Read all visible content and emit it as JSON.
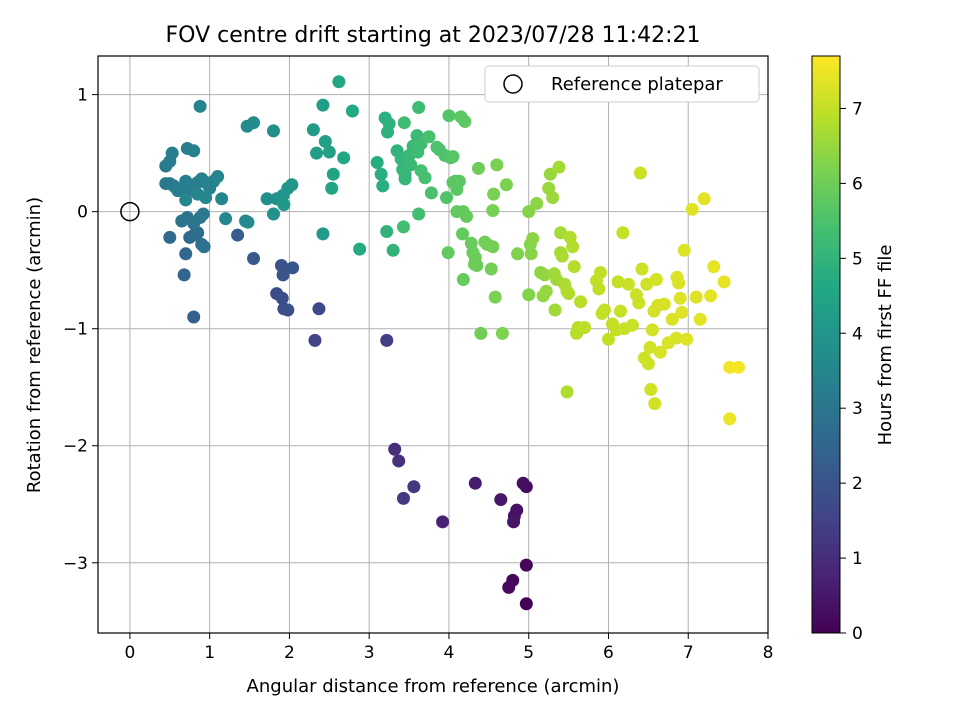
{
  "chart_data": {
    "type": "scatter",
    "title": "FOV centre drift starting at 2023/07/28 11:42:21",
    "xlabel": "Angular distance from reference (arcmin)",
    "ylabel": "Rotation from reference (arcmin)",
    "xlim": [
      -0.4,
      8.0
    ],
    "ylim": [
      -3.6,
      1.33
    ],
    "xticks": [
      "0",
      "1",
      "2",
      "3",
      "4",
      "5",
      "6",
      "7",
      "8"
    ],
    "yticks": [
      "1",
      "0",
      "−1",
      "−2",
      "−3"
    ],
    "grid": true,
    "legend": {
      "placement": "top-right",
      "entries": [
        "Reference platepar"
      ]
    },
    "reference_point": {
      "x": 0,
      "y": 0
    },
    "colorbar": {
      "label": "Hours from first FF file",
      "range": [
        0,
        7.7
      ],
      "ticks": [
        "0",
        "1",
        "2",
        "3",
        "4",
        "5",
        "6",
        "7"
      ],
      "colormap": "viridis"
    },
    "points": [
      [
        4.97,
        -3.35,
        0.05
      ],
      [
        4.97,
        -3.02,
        0.1
      ],
      [
        4.8,
        -3.15,
        0.15
      ],
      [
        4.75,
        -3.21,
        0.2
      ],
      [
        4.97,
        -2.35,
        0.25
      ],
      [
        4.93,
        -2.32,
        0.3
      ],
      [
        4.85,
        -2.55,
        0.35
      ],
      [
        4.82,
        -2.6,
        0.4
      ],
      [
        4.81,
        -2.65,
        0.45
      ],
      [
        4.65,
        -2.46,
        0.5
      ],
      [
        4.33,
        -2.32,
        0.6
      ],
      [
        3.92,
        -2.65,
        0.75
      ],
      [
        3.32,
        -2.03,
        1.0
      ],
      [
        3.37,
        -2.13,
        1.1
      ],
      [
        3.56,
        -2.35,
        1.2
      ],
      [
        3.43,
        -2.45,
        1.3
      ],
      [
        3.22,
        -1.1,
        1.4
      ],
      [
        2.32,
        -1.1,
        1.55
      ],
      [
        2.37,
        -0.83,
        1.65
      ],
      [
        1.84,
        -0.7,
        1.75
      ],
      [
        1.91,
        -0.74,
        1.8
      ],
      [
        1.93,
        -0.83,
        1.85
      ],
      [
        1.98,
        -0.84,
        1.9
      ],
      [
        1.9,
        -0.46,
        1.95
      ],
      [
        1.92,
        -0.54,
        2.0
      ],
      [
        2.04,
        -0.48,
        2.05
      ],
      [
        1.55,
        -0.4,
        2.15
      ],
      [
        1.35,
        -0.2,
        2.25
      ],
      [
        0.8,
        -0.9,
        2.4
      ],
      [
        0.68,
        -0.54,
        2.5
      ],
      [
        0.7,
        -0.36,
        2.55
      ],
      [
        0.5,
        -0.22,
        2.6
      ],
      [
        0.75,
        -0.22,
        2.65
      ],
      [
        0.8,
        -0.2,
        2.7
      ],
      [
        0.85,
        -0.18,
        2.75
      ],
      [
        0.9,
        -0.28,
        2.8
      ],
      [
        0.93,
        -0.3,
        2.85
      ],
      [
        0.65,
        -0.08,
        2.9
      ],
      [
        0.72,
        -0.05,
        2.95
      ],
      [
        0.8,
        -0.1,
        3.0
      ],
      [
        0.88,
        -0.05,
        3.05
      ],
      [
        0.92,
        -0.02,
        3.1
      ],
      [
        0.45,
        0.24,
        3.1
      ],
      [
        0.5,
        0.24,
        3.15
      ],
      [
        0.55,
        0.22,
        3.15
      ],
      [
        0.6,
        0.18,
        3.2
      ],
      [
        0.65,
        0.2,
        3.2
      ],
      [
        0.7,
        0.26,
        3.25
      ],
      [
        0.75,
        0.18,
        3.25
      ],
      [
        0.8,
        0.22,
        3.3
      ],
      [
        0.85,
        0.25,
        3.3
      ],
      [
        0.9,
        0.28,
        3.35
      ],
      [
        0.95,
        0.25,
        3.35
      ],
      [
        1.0,
        0.2,
        3.4
      ],
      [
        1.05,
        0.26,
        3.4
      ],
      [
        1.1,
        0.3,
        3.45
      ],
      [
        0.85,
        0.15,
        3.45
      ],
      [
        0.7,
        0.1,
        3.5
      ],
      [
        0.95,
        0.12,
        3.5
      ],
      [
        0.45,
        0.39,
        3.2
      ],
      [
        0.5,
        0.43,
        3.25
      ],
      [
        0.53,
        0.5,
        3.25
      ],
      [
        0.72,
        0.54,
        3.3
      ],
      [
        0.8,
        0.52,
        3.35
      ],
      [
        0.88,
        0.9,
        3.4
      ],
      [
        1.2,
        -0.06,
        3.5
      ],
      [
        1.15,
        0.11,
        3.55
      ],
      [
        1.45,
        -0.08,
        3.6
      ],
      [
        1.48,
        -0.09,
        3.65
      ],
      [
        1.47,
        0.73,
        3.65
      ],
      [
        1.55,
        0.76,
        3.7
      ],
      [
        1.8,
        0.69,
        3.75
      ],
      [
        1.72,
        0.11,
        3.8
      ],
      [
        1.8,
        -0.02,
        3.85
      ],
      [
        1.84,
        0.11,
        3.9
      ],
      [
        1.92,
        0.14,
        3.95
      ],
      [
        1.98,
        0.2,
        4.0
      ],
      [
        2.03,
        0.23,
        4.05
      ],
      [
        1.93,
        0.06,
        4.1
      ],
      [
        2.42,
        -0.19,
        4.15
      ],
      [
        2.3,
        0.7,
        4.2
      ],
      [
        2.34,
        0.5,
        4.25
      ],
      [
        2.42,
        0.91,
        4.3
      ],
      [
        2.45,
        0.6,
        4.35
      ],
      [
        2.5,
        0.51,
        4.4
      ],
      [
        2.55,
        0.32,
        4.45
      ],
      [
        2.53,
        0.2,
        4.5
      ],
      [
        2.68,
        0.46,
        4.55
      ],
      [
        2.62,
        1.11,
        4.6
      ],
      [
        2.79,
        0.86,
        4.65
      ],
      [
        2.88,
        -0.32,
        4.7
      ],
      [
        3.1,
        0.42,
        4.75
      ],
      [
        3.15,
        0.32,
        4.8
      ],
      [
        3.17,
        0.22,
        4.85
      ],
      [
        3.2,
        0.8,
        4.85
      ],
      [
        3.23,
        0.68,
        4.9
      ],
      [
        3.25,
        0.75,
        4.9
      ],
      [
        3.22,
        -0.17,
        4.95
      ],
      [
        3.3,
        -0.33,
        5.0
      ],
      [
        3.35,
        0.52,
        5.0
      ],
      [
        3.4,
        0.45,
        5.05
      ],
      [
        3.42,
        0.36,
        5.05
      ],
      [
        3.45,
        0.32,
        5.1
      ],
      [
        3.45,
        0.28,
        5.1
      ],
      [
        3.5,
        0.48,
        5.15
      ],
      [
        3.52,
        0.4,
        5.15
      ],
      [
        3.55,
        0.56,
        5.2
      ],
      [
        3.6,
        0.65,
        5.2
      ],
      [
        3.61,
        0.51,
        5.25
      ],
      [
        3.62,
        0.89,
        5.25
      ],
      [
        3.65,
        0.58,
        5.3
      ],
      [
        3.44,
        0.76,
        5.3
      ],
      [
        3.43,
        -0.13,
        5.35
      ],
      [
        3.62,
        -0.02,
        5.35
      ],
      [
        3.65,
        0.35,
        5.4
      ],
      [
        3.7,
        0.29,
        5.4
      ],
      [
        3.75,
        0.64,
        5.45
      ],
      [
        3.78,
        0.16,
        5.45
      ],
      [
        3.85,
        0.55,
        5.5
      ],
      [
        3.88,
        0.53,
        5.5
      ],
      [
        3.95,
        0.48,
        5.55
      ],
      [
        3.97,
        0.12,
        5.55
      ],
      [
        4.0,
        0.82,
        5.6
      ],
      [
        4.02,
        0.46,
        5.6
      ],
      [
        4.05,
        0.47,
        5.65
      ],
      [
        4.08,
        0.26,
        5.65
      ],
      [
        4.1,
        0.19,
        5.7
      ],
      [
        4.05,
        0.25,
        5.7
      ],
      [
        4.13,
        0.26,
        5.72
      ],
      [
        4.15,
        0.81,
        5.75
      ],
      [
        4.2,
        0.77,
        5.75
      ],
      [
        3.99,
        -0.35,
        5.8
      ],
      [
        4.1,
        0.0,
        5.8
      ],
      [
        4.18,
        0.0,
        5.82
      ],
      [
        4.22,
        -0.04,
        5.84
      ],
      [
        4.17,
        -0.19,
        5.86
      ],
      [
        4.18,
        -0.58,
        5.88
      ],
      [
        4.28,
        -0.27,
        5.9
      ],
      [
        4.3,
        -0.35,
        5.92
      ],
      [
        4.33,
        -0.39,
        5.94
      ],
      [
        4.35,
        -0.46,
        5.96
      ],
      [
        4.32,
        -0.45,
        5.98
      ],
      [
        4.37,
        0.37,
        6.0
      ],
      [
        4.4,
        -1.04,
        6.0
      ],
      [
        4.45,
        -0.26,
        6.02
      ],
      [
        4.48,
        -0.28,
        6.04
      ],
      [
        4.53,
        -0.49,
        6.06
      ],
      [
        4.55,
        -0.3,
        6.08
      ],
      [
        4.55,
        0.01,
        6.1
      ],
      [
        4.56,
        0.15,
        6.12
      ],
      [
        4.58,
        -0.73,
        6.14
      ],
      [
        4.6,
        0.4,
        6.16
      ],
      [
        4.72,
        0.23,
        6.18
      ],
      [
        4.67,
        -1.04,
        6.2
      ],
      [
        4.86,
        -0.36,
        6.22
      ],
      [
        5.0,
        -0.71,
        6.25
      ],
      [
        5.0,
        0.0,
        6.27
      ],
      [
        5.02,
        -0.28,
        6.3
      ],
      [
        5.03,
        -0.36,
        6.32
      ],
      [
        5.05,
        -0.23,
        6.35
      ],
      [
        5.1,
        0.07,
        6.37
      ],
      [
        5.15,
        -0.52,
        6.4
      ],
      [
        5.2,
        -0.54,
        6.42
      ],
      [
        5.18,
        -0.72,
        6.45
      ],
      [
        5.22,
        -0.68,
        6.47
      ],
      [
        5.25,
        0.2,
        6.5
      ],
      [
        5.27,
        0.32,
        6.52
      ],
      [
        5.3,
        0.12,
        6.55
      ],
      [
        5.32,
        -0.53,
        6.57
      ],
      [
        5.33,
        -0.84,
        6.6
      ],
      [
        5.35,
        -0.58,
        6.62
      ],
      [
        5.38,
        0.38,
        6.64
      ],
      [
        5.4,
        -0.18,
        6.66
      ],
      [
        5.4,
        -0.35,
        6.68
      ],
      [
        5.42,
        -0.38,
        6.7
      ],
      [
        5.45,
        -0.62,
        6.72
      ],
      [
        5.48,
        -0.68,
        6.74
      ],
      [
        5.48,
        -1.54,
        6.76
      ],
      [
        5.5,
        -0.7,
        6.78
      ],
      [
        5.52,
        -0.22,
        6.8
      ],
      [
        5.55,
        -0.3,
        6.82
      ],
      [
        5.57,
        -0.47,
        6.84
      ],
      [
        5.6,
        -1.04,
        6.86
      ],
      [
        5.62,
        -0.99,
        6.88
      ],
      [
        5.65,
        -0.77,
        6.9
      ],
      [
        5.7,
        -0.99,
        6.92
      ],
      [
        5.85,
        -0.59,
        6.95
      ],
      [
        5.88,
        -0.66,
        6.96
      ],
      [
        5.9,
        -0.52,
        6.97
      ],
      [
        5.92,
        -0.87,
        6.98
      ],
      [
        5.95,
        -0.84,
        6.99
      ],
      [
        6.0,
        -1.09,
        7.0
      ],
      [
        6.05,
        -0.96,
        7.01
      ],
      [
        6.1,
        -1.01,
        7.02
      ],
      [
        6.12,
        -0.6,
        7.03
      ],
      [
        6.15,
        -0.85,
        7.04
      ],
      [
        6.18,
        -0.18,
        7.05
      ],
      [
        6.2,
        -1.0,
        7.06
      ],
      [
        6.25,
        -0.62,
        7.07
      ],
      [
        6.3,
        -0.97,
        7.08
      ],
      [
        6.35,
        -0.71,
        7.09
      ],
      [
        6.38,
        -0.78,
        7.1
      ],
      [
        6.4,
        0.33,
        7.11
      ],
      [
        6.42,
        -0.49,
        7.12
      ],
      [
        6.45,
        -1.25,
        7.13
      ],
      [
        6.48,
        -0.62,
        7.14
      ],
      [
        6.5,
        -1.3,
        7.15
      ],
      [
        6.52,
        -1.16,
        7.16
      ],
      [
        6.53,
        -1.52,
        7.17
      ],
      [
        6.55,
        -1.01,
        7.18
      ],
      [
        6.57,
        -0.85,
        7.19
      ],
      [
        6.58,
        -1.64,
        7.2
      ],
      [
        6.6,
        -0.58,
        7.21
      ],
      [
        6.62,
        -0.8,
        7.22
      ],
      [
        6.65,
        -1.2,
        7.23
      ],
      [
        6.7,
        -0.79,
        7.24
      ],
      [
        6.75,
        -1.12,
        7.25
      ],
      [
        6.8,
        -0.92,
        7.26
      ],
      [
        6.85,
        -1.08,
        7.27
      ],
      [
        6.86,
        -0.56,
        7.28
      ],
      [
        6.88,
        -0.61,
        7.29
      ],
      [
        6.9,
        -0.74,
        7.3
      ],
      [
        6.92,
        -0.86,
        7.31
      ],
      [
        6.95,
        -0.33,
        7.32
      ],
      [
        6.98,
        -1.09,
        7.33
      ],
      [
        7.05,
        0.02,
        7.34
      ],
      [
        7.1,
        -0.73,
        7.35
      ],
      [
        7.15,
        -0.92,
        7.36
      ],
      [
        7.2,
        0.11,
        7.38
      ],
      [
        7.28,
        -0.72,
        7.4
      ],
      [
        7.32,
        -0.47,
        7.42
      ],
      [
        7.45,
        -0.6,
        7.45
      ],
      [
        7.52,
        -1.77,
        7.5
      ],
      [
        7.52,
        -1.33,
        7.55
      ],
      [
        7.63,
        -1.33,
        7.6
      ]
    ]
  }
}
